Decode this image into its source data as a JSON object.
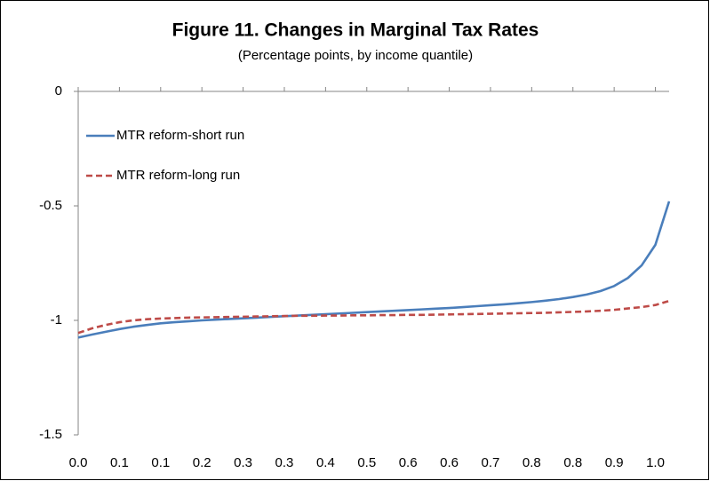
{
  "chart_data": {
    "type": "line",
    "title": "Figure 11. Changes in Marginal Tax Rates",
    "subtitle": "(Percentage points, by income quantile)",
    "categories": [
      "0.0",
      null,
      null,
      "0.1",
      null,
      null,
      "0.1",
      null,
      null,
      "0.2",
      null,
      null,
      "0.3",
      null,
      null,
      "0.3",
      null,
      null,
      "0.4",
      null,
      null,
      "0.5",
      null,
      null,
      "0.6",
      null,
      null,
      "0.6",
      null,
      null,
      "0.7",
      null,
      null,
      "0.8",
      null,
      null,
      "0.8",
      null,
      null,
      "0.9",
      null,
      null,
      "1.0",
      null
    ],
    "series": [
      {
        "name": "MTR reform-short run",
        "color": "#4a7ebb",
        "dash": false,
        "values": [
          -1.075,
          -1.062,
          -1.05,
          -1.038,
          -1.028,
          -1.02,
          -1.013,
          -1.008,
          -1.004,
          -1.0,
          -0.997,
          -0.994,
          -0.991,
          -0.988,
          -0.985,
          -0.982,
          -0.979,
          -0.976,
          -0.973,
          -0.97,
          -0.967,
          -0.964,
          -0.961,
          -0.958,
          -0.955,
          -0.952,
          -0.949,
          -0.946,
          -0.942,
          -0.938,
          -0.934,
          -0.93,
          -0.925,
          -0.92,
          -0.914,
          -0.907,
          -0.898,
          -0.887,
          -0.872,
          -0.85,
          -0.815,
          -0.76,
          -0.67,
          -0.48
        ]
      },
      {
        "name": "MTR reform-long run",
        "color": "#be4b48",
        "dash": true,
        "values": [
          -1.055,
          -1.035,
          -1.02,
          -1.008,
          -1.0,
          -0.995,
          -0.992,
          -0.99,
          -0.988,
          -0.987,
          -0.986,
          -0.985,
          -0.984,
          -0.983,
          -0.982,
          -0.981,
          -0.98,
          -0.98,
          -0.979,
          -0.979,
          -0.978,
          -0.978,
          -0.977,
          -0.977,
          -0.976,
          -0.976,
          -0.975,
          -0.974,
          -0.973,
          -0.972,
          -0.971,
          -0.97,
          -0.969,
          -0.968,
          -0.967,
          -0.965,
          -0.963,
          -0.961,
          -0.958,
          -0.954,
          -0.948,
          -0.942,
          -0.933,
          -0.915
        ]
      }
    ],
    "ylim": [
      -1.5,
      0
    ],
    "yticks": [
      0,
      -0.5,
      -1,
      -1.5
    ],
    "legend": "upper left"
  }
}
